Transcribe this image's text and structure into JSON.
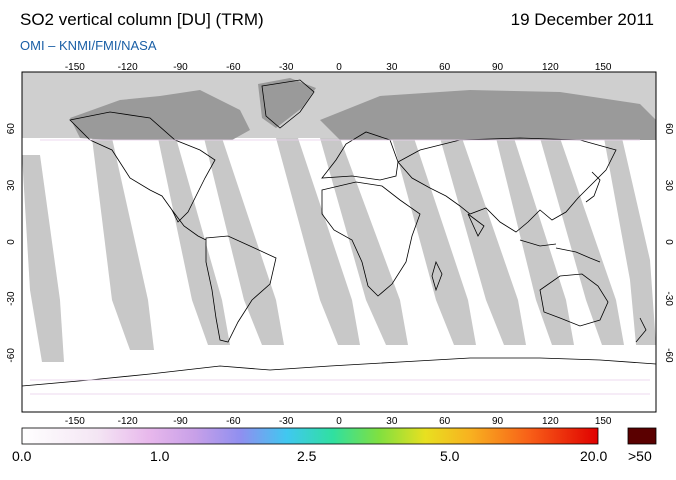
{
  "title": "SO2 vertical column [DU] (TRM)",
  "date": "19 December 2011",
  "credit": "OMI  –  KNMI/FMI/NASA",
  "map": {
    "lon_ticks": [
      "-150",
      "-120",
      "-90",
      "-60",
      "-30",
      "0",
      "30",
      "60",
      "90",
      "120",
      "150"
    ],
    "lat_ticks": [
      "60",
      "30",
      "0",
      "-30",
      "-60"
    ],
    "colors": {
      "ocean_bg": "#ffffff",
      "polar_night": "#cfcfcf",
      "land_night": "#9a9a9a",
      "swath_gap": "#c8c8c8",
      "swath_gap_land": "#8e8e8e",
      "coast": "#000000"
    }
  },
  "colorbar": {
    "labels": [
      "0.0",
      "1.0",
      "2.5",
      "5.0",
      "20.0"
    ],
    "overflow_label": ">50",
    "overflow_color": "#5a0000"
  }
}
